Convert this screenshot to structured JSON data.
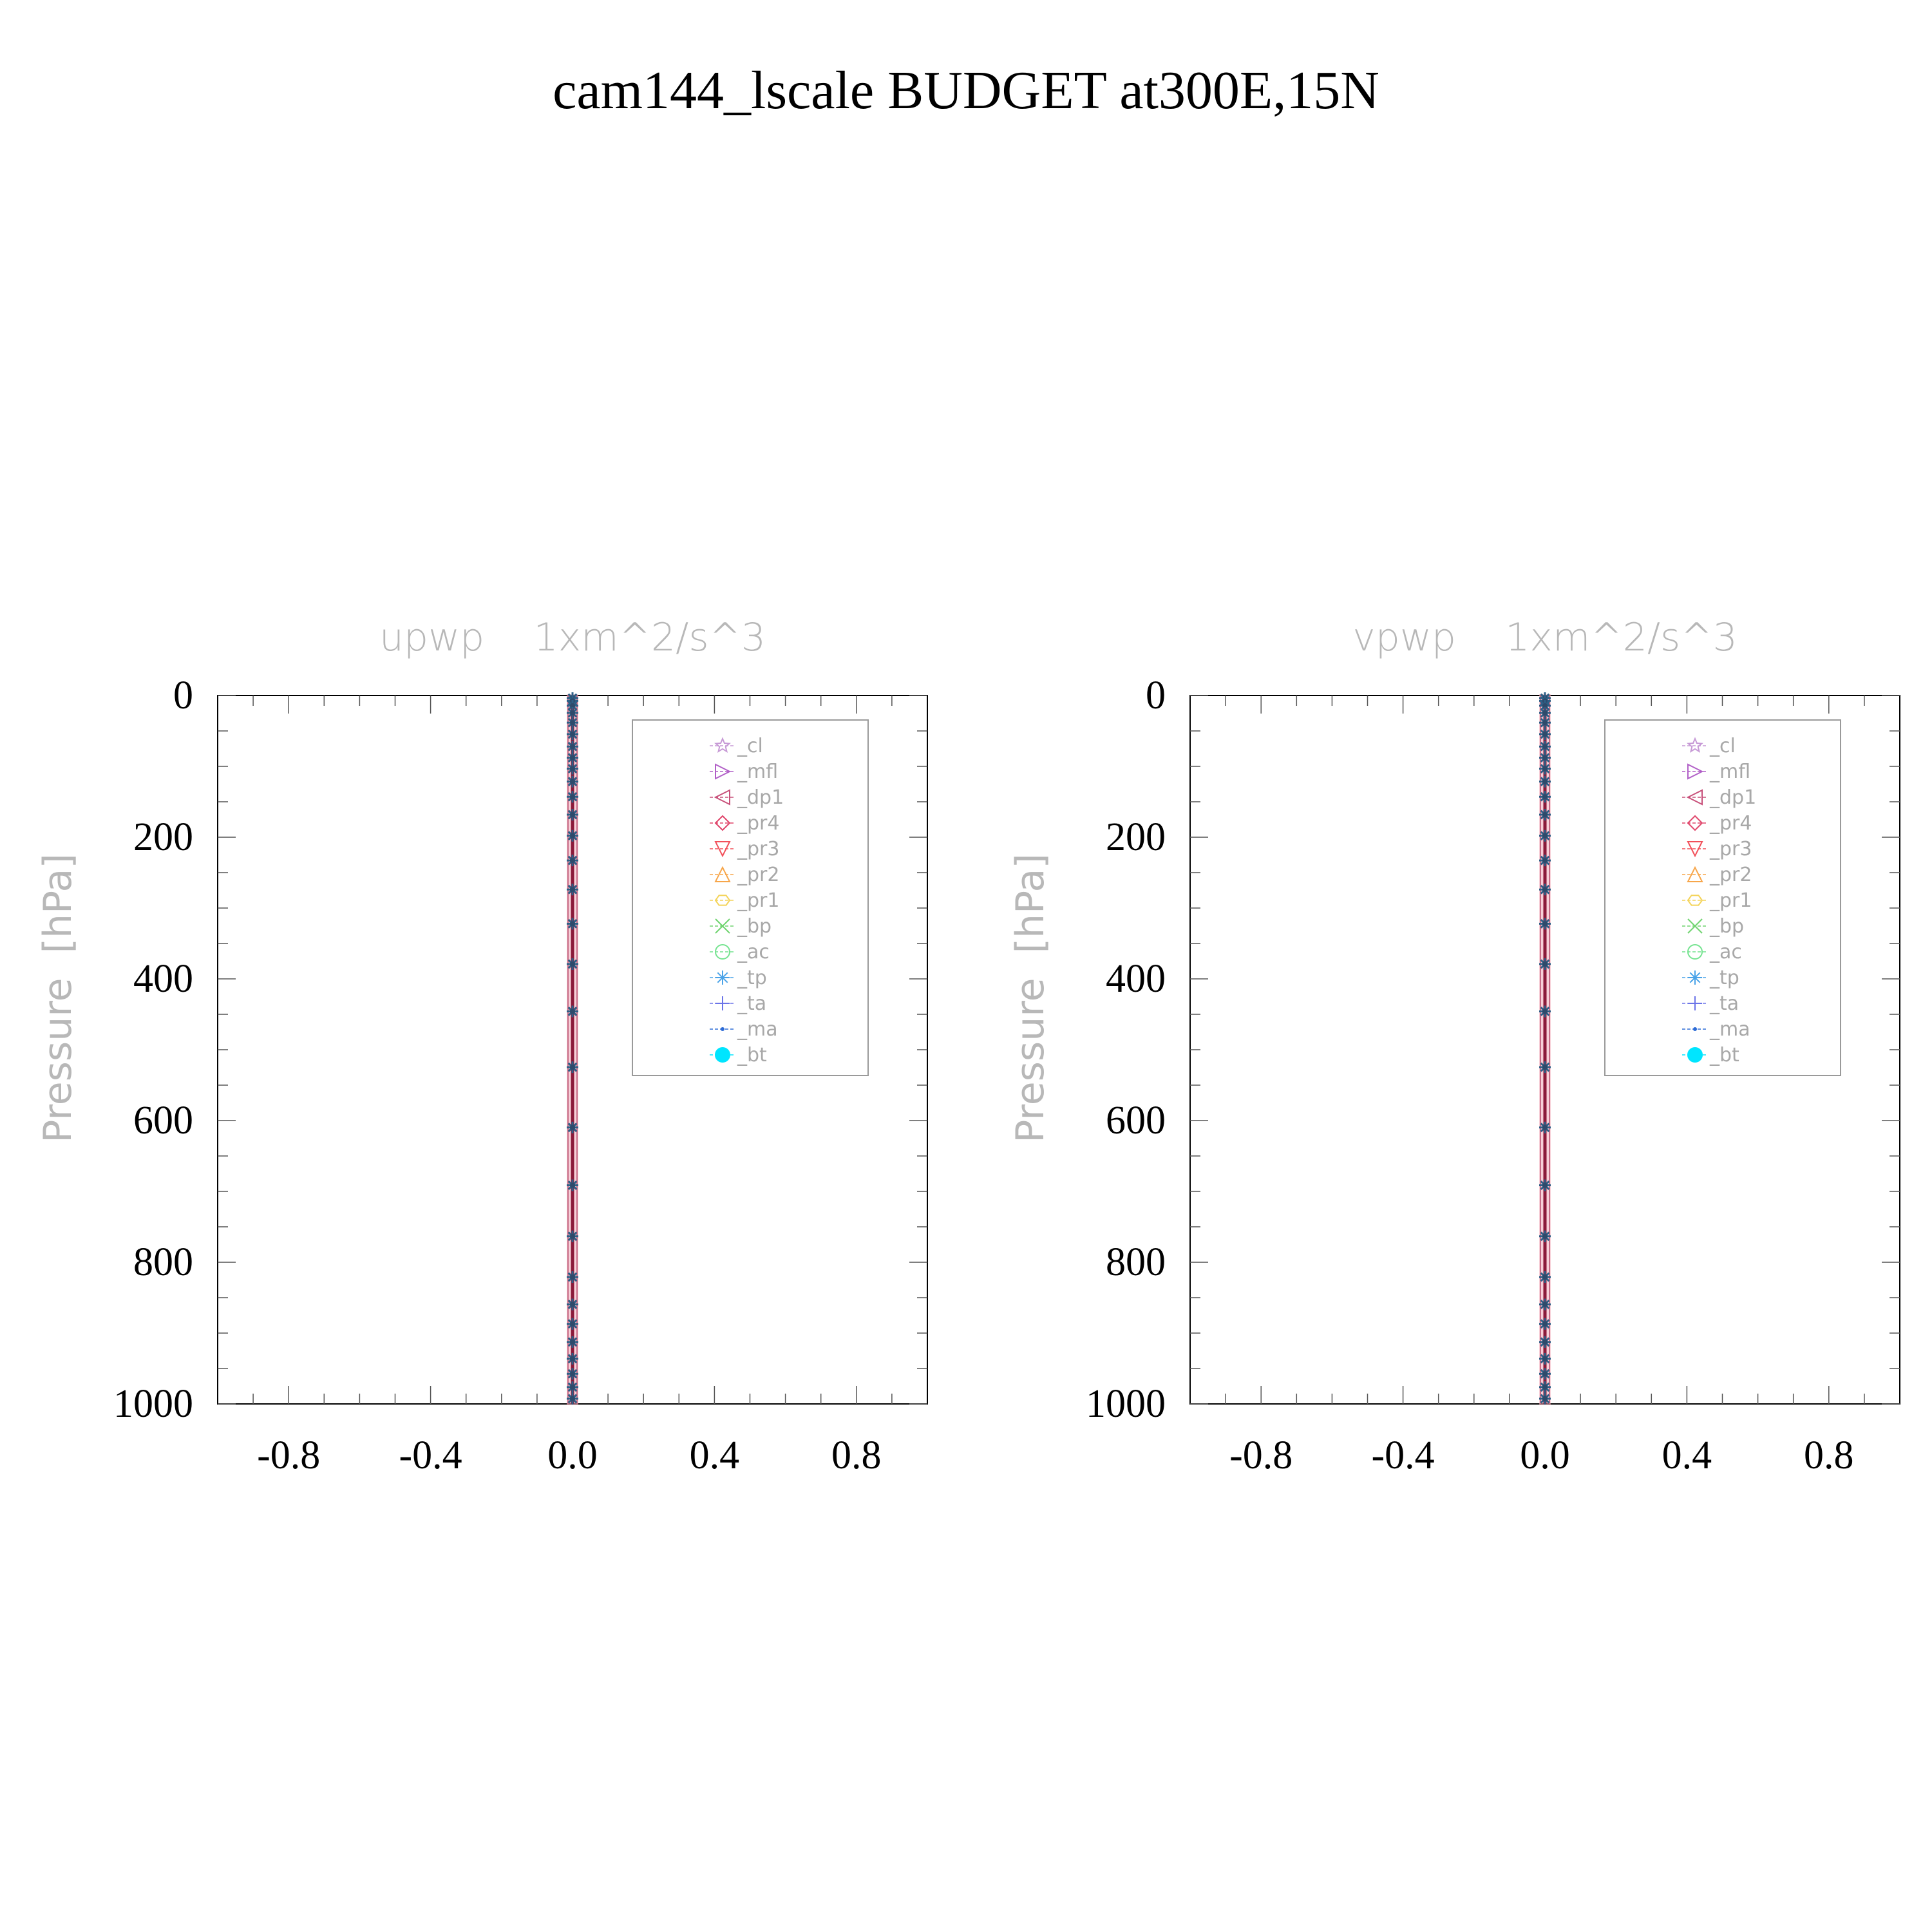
{
  "figure": {
    "title": "cam144_lscale  BUDGET at300E,15N"
  },
  "style": {
    "axis_color": "#000000",
    "label_color": "#b8b8b8",
    "legend_text_color": "#a8a8a8",
    "profile_line_color": "#8b1a3a"
  },
  "legend": {
    "entries": [
      {
        "label": "_cl",
        "color": "#c79ad6",
        "marker": "star"
      },
      {
        "label": "_mfl",
        "color": "#b15fc7",
        "marker": "triangle-right"
      },
      {
        "label": "_dp1",
        "color": "#c8507a",
        "marker": "triangle-left"
      },
      {
        "label": "_pr4",
        "color": "#e0456a",
        "marker": "diamond"
      },
      {
        "label": "_pr3",
        "color": "#f2505a",
        "marker": "triangle-down"
      },
      {
        "label": "_pr2",
        "color": "#f7a64a",
        "marker": "triangle-up"
      },
      {
        "label": "_pr1",
        "color": "#f4d45a",
        "marker": "hexagon"
      },
      {
        "label": "_bp",
        "color": "#6fd46f",
        "marker": "x"
      },
      {
        "label": "_ac",
        "color": "#74e38f",
        "marker": "circle"
      },
      {
        "label": "_tp",
        "color": "#4aa3e8",
        "marker": "asterisk"
      },
      {
        "label": "_ta",
        "color": "#6b74e8",
        "marker": "plus"
      },
      {
        "label": "_ma",
        "color": "#2c6bd6",
        "marker": "dot"
      },
      {
        "label": "_bt",
        "color": "#00e5ff",
        "marker": "filled-circle"
      }
    ]
  },
  "chart_data": [
    {
      "type": "line",
      "title": "upwp    1xm^2/s^3",
      "ylabel": "Pressure  [hPa]",
      "xlabel": "",
      "xlim": [
        -1.0,
        1.0
      ],
      "ylim": [
        0,
        1000
      ],
      "y_inverted": true,
      "x_ticks": [
        "-0.8",
        "-0.4",
        "0.0",
        "0.4",
        "0.8"
      ],
      "x_tick_values": [
        -0.8,
        -0.4,
        0.0,
        0.4,
        0.8
      ],
      "y_ticks": [
        "0",
        "200",
        "400",
        "600",
        "800",
        "1000"
      ],
      "y_tick_values": [
        0,
        200,
        400,
        600,
        800,
        1000
      ],
      "legend_position": "top-right",
      "grid": false,
      "profile_x": 0.0,
      "pressure_levels": [
        3.6,
        7.6,
        14.4,
        24.6,
        38.3,
        54.6,
        72.0,
        87.8,
        103.3,
        121.5,
        142.9,
        168.2,
        197.9,
        232.8,
        273.9,
        322.2,
        379.1,
        445.9,
        524.7,
        609.8,
        691.4,
        763.4,
        820.9,
        859.5,
        887.0,
        912.6,
        936.2,
        957.5,
        976.3,
        992.6
      ]
    },
    {
      "type": "line",
      "title": "vpwp    1xm^2/s^3",
      "ylabel": "Pressure  [hPa]",
      "xlabel": "",
      "xlim": [
        -1.0,
        1.0
      ],
      "ylim": [
        0,
        1000
      ],
      "y_inverted": true,
      "x_ticks": [
        "-0.8",
        "-0.4",
        "0.0",
        "0.4",
        "0.8"
      ],
      "x_tick_values": [
        -0.8,
        -0.4,
        0.0,
        0.4,
        0.8
      ],
      "y_ticks": [
        "0",
        "200",
        "400",
        "600",
        "800",
        "1000"
      ],
      "y_tick_values": [
        0,
        200,
        400,
        600,
        800,
        1000
      ],
      "legend_position": "top-right",
      "grid": false,
      "profile_x": 0.0,
      "pressure_levels": [
        3.6,
        7.6,
        14.4,
        24.6,
        38.3,
        54.6,
        72.0,
        87.8,
        103.3,
        121.5,
        142.9,
        168.2,
        197.9,
        232.8,
        273.9,
        322.2,
        379.1,
        445.9,
        524.7,
        609.8,
        691.4,
        763.4,
        820.9,
        859.5,
        887.0,
        912.6,
        936.2,
        957.5,
        976.3,
        992.6
      ]
    }
  ]
}
